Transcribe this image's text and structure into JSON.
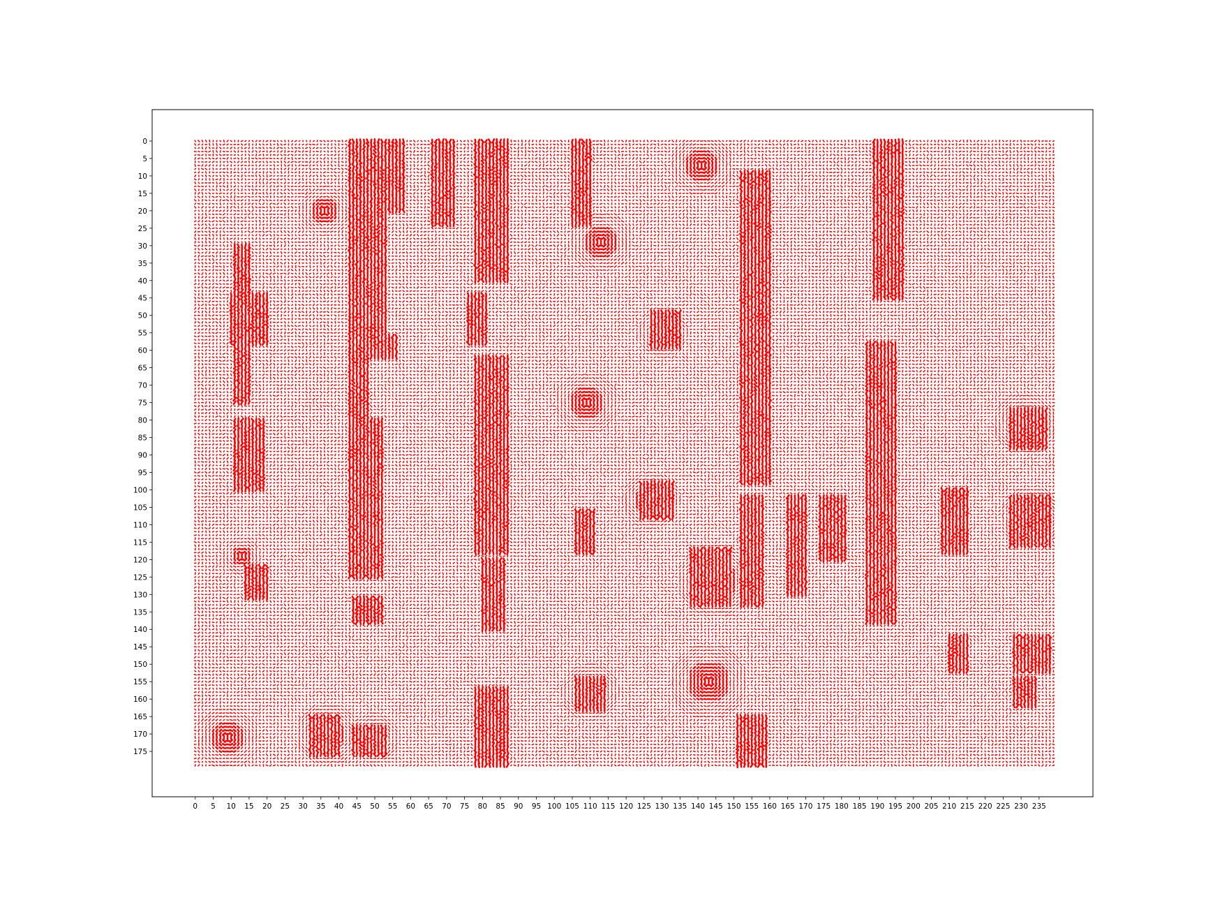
{
  "chart_data": {
    "type": "quiver",
    "title": "",
    "xlabel": "",
    "ylabel": "",
    "xlim": [
      -12,
      250
    ],
    "ylim": [
      -9,
      188
    ],
    "y_inverted": true,
    "grid": false,
    "legend": "none",
    "field_extent": {
      "x": [
        0,
        239
      ],
      "y": [
        0,
        179
      ]
    },
    "arrow_color": "#ff0000",
    "axes_edge_color": "#000000",
    "background_color": "#ffffff",
    "x_ticks": [
      0,
      5,
      10,
      15,
      20,
      25,
      30,
      35,
      40,
      45,
      50,
      55,
      60,
      65,
      70,
      75,
      80,
      85,
      90,
      95,
      100,
      105,
      110,
      115,
      120,
      125,
      130,
      135,
      140,
      145,
      150,
      155,
      160,
      165,
      170,
      175,
      180,
      185,
      190,
      195,
      200,
      205,
      210,
      215,
      220,
      225,
      230,
      235
    ],
    "y_ticks": [
      0,
      5,
      10,
      15,
      20,
      25,
      30,
      35,
      40,
      45,
      50,
      55,
      60,
      65,
      70,
      75,
      80,
      85,
      90,
      95,
      100,
      105,
      110,
      115,
      120,
      125,
      130,
      135,
      140,
      145,
      150,
      155,
      160,
      165,
      170,
      175
    ],
    "dense_bands": [
      {
        "x": [
          43,
          48
        ],
        "y": [
          0,
          125
        ]
      },
      {
        "x": [
          48,
          53
        ],
        "y": [
          0,
          60
        ]
      },
      {
        "x": [
          52,
          58
        ],
        "y": [
          0,
          20
        ]
      },
      {
        "x": [
          47,
          51
        ],
        "y": [
          47,
          54
        ]
      },
      {
        "x": [
          48,
          56
        ],
        "y": [
          56,
          62
        ]
      },
      {
        "x": [
          48,
          52
        ],
        "y": [
          80,
          125
        ]
      },
      {
        "x": [
          43,
          46
        ],
        "y": [
          67,
          77
        ]
      },
      {
        "x": [
          44,
          52
        ],
        "y": [
          131,
          138
        ]
      },
      {
        "x": [
          44,
          53
        ],
        "y": [
          168,
          176
        ]
      },
      {
        "x": [
          78,
          87
        ],
        "y": [
          0,
          40
        ]
      },
      {
        "x": [
          76,
          81
        ],
        "y": [
          44,
          58
        ]
      },
      {
        "x": [
          78,
          87
        ],
        "y": [
          62,
          118
        ]
      },
      {
        "x": [
          80,
          86
        ],
        "y": [
          120,
          140
        ]
      },
      {
        "x": [
          78,
          87
        ],
        "y": [
          157,
          179
        ]
      },
      {
        "x": [
          152,
          160
        ],
        "y": [
          9,
          98
        ]
      },
      {
        "x": [
          152,
          158
        ],
        "y": [
          102,
          133
        ]
      },
      {
        "x": [
          151,
          159
        ],
        "y": [
          165,
          179
        ]
      },
      {
        "x": [
          189,
          197
        ],
        "y": [
          0,
          45
        ]
      },
      {
        "x": [
          187,
          195
        ],
        "y": [
          58,
          138
        ]
      },
      {
        "x": [
          10,
          20
        ],
        "y": [
          44,
          58
        ]
      },
      {
        "x": [
          11,
          15
        ],
        "y": [
          30,
          75
        ]
      },
      {
        "x": [
          11,
          19
        ],
        "y": [
          80,
          100
        ]
      },
      {
        "x": [
          14,
          20
        ],
        "y": [
          122,
          131
        ]
      },
      {
        "x": [
          105,
          110
        ],
        "y": [
          0,
          24
        ]
      },
      {
        "x": [
          106,
          114
        ],
        "y": [
          154,
          163
        ]
      },
      {
        "x": [
          106,
          111
        ],
        "y": [
          106,
          118
        ]
      },
      {
        "x": [
          32,
          40
        ],
        "y": [
          165,
          176
        ]
      },
      {
        "x": [
          66,
          72
        ],
        "y": [
          0,
          24
        ]
      },
      {
        "x": [
          227,
          237
        ],
        "y": [
          77,
          88
        ]
      },
      {
        "x": [
          227,
          238
        ],
        "y": [
          102,
          116
        ]
      },
      {
        "x": [
          228,
          238
        ],
        "y": [
          142,
          152
        ]
      },
      {
        "x": [
          228,
          234
        ],
        "y": [
          154,
          162
        ]
      },
      {
        "x": [
          208,
          215
        ],
        "y": [
          100,
          118
        ]
      },
      {
        "x": [
          210,
          215
        ],
        "y": [
          142,
          152
        ]
      },
      {
        "x": [
          174,
          181
        ],
        "y": [
          102,
          120
        ]
      },
      {
        "x": [
          165,
          170
        ],
        "y": [
          102,
          130
        ]
      },
      {
        "x": [
          138,
          149
        ],
        "y": [
          117,
          133
        ]
      },
      {
        "x": [
          124,
          133
        ],
        "y": [
          98,
          108
        ]
      },
      {
        "x": [
          127,
          135
        ],
        "y": [
          49,
          59
        ]
      }
    ],
    "vortices": [
      {
        "x": 130,
        "y": 55,
        "r": 4
      },
      {
        "x": 127,
        "y": 103,
        "r": 4.5
      },
      {
        "x": 110,
        "y": 158,
        "r": 4.5
      },
      {
        "x": 37,
        "y": 170,
        "r": 5
      },
      {
        "x": 50,
        "y": 171,
        "r": 4
      },
      {
        "x": 145,
        "y": 126,
        "r": 6
      },
      {
        "x": 109,
        "y": 75,
        "r": 5
      },
      {
        "x": 36,
        "y": 20,
        "r": 4
      },
      {
        "x": 233,
        "y": 108,
        "r": 5
      },
      {
        "x": 143,
        "y": 155,
        "r": 6
      },
      {
        "x": 141,
        "y": 7,
        "r": 5
      },
      {
        "x": 113,
        "y": 29,
        "r": 5
      },
      {
        "x": 231,
        "y": 81,
        "r": 5
      },
      {
        "x": 13,
        "y": 119,
        "r": 3
      },
      {
        "x": 9,
        "y": 171,
        "r": 5
      }
    ]
  }
}
